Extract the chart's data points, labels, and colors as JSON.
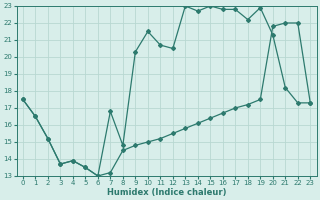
{
  "xlabel": "Humidex (Indice chaleur)",
  "line1_x": [
    0,
    1,
    2,
    3,
    4,
    5,
    6,
    7,
    8,
    9,
    10,
    11,
    12,
    13,
    14,
    15,
    16,
    17,
    18,
    19,
    20,
    21,
    22,
    23
  ],
  "line1_y": [
    17.5,
    16.5,
    15.2,
    13.7,
    13.9,
    13.5,
    13.0,
    16.8,
    14.8,
    20.3,
    21.5,
    20.7,
    20.5,
    23.0,
    22.7,
    23.0,
    22.8,
    22.8,
    22.2,
    22.9,
    21.3,
    18.2,
    17.3,
    17.3
  ],
  "line2_x": [
    0,
    1,
    2,
    3,
    4,
    5,
    6,
    7,
    8,
    9,
    10,
    11,
    12,
    13,
    14,
    15,
    16,
    17,
    18,
    19,
    20,
    21,
    22,
    23
  ],
  "line2_y": [
    17.5,
    16.5,
    15.2,
    13.7,
    13.9,
    13.5,
    13.0,
    13.2,
    14.5,
    14.8,
    15.0,
    15.2,
    15.5,
    15.8,
    16.1,
    16.4,
    16.7,
    17.0,
    17.2,
    17.5,
    21.8,
    22.0,
    22.0,
    17.3
  ],
  "line_color": "#2d7a6e",
  "background_color": "#d8eeea",
  "grid_color": "#b8d8d2",
  "xlim": [
    -0.5,
    23.5
  ],
  "ylim": [
    13,
    23
  ],
  "yticks": [
    13,
    14,
    15,
    16,
    17,
    18,
    19,
    20,
    21,
    22,
    23
  ],
  "xticks": [
    0,
    1,
    2,
    3,
    4,
    5,
    6,
    7,
    8,
    9,
    10,
    11,
    12,
    13,
    14,
    15,
    16,
    17,
    18,
    19,
    20,
    21,
    22,
    23
  ],
  "marker": "D",
  "marker_size": 2.0,
  "linewidth": 0.9,
  "tick_fontsize": 5.0,
  "xlabel_fontsize": 6.0
}
